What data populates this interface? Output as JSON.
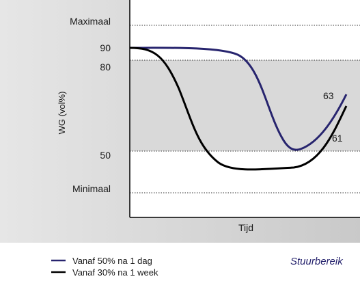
{
  "y_axis": {
    "title": "WG (vol%)",
    "labels": [
      "Maximaal",
      "90",
      "80",
      "50",
      "Minimaal"
    ]
  },
  "x_axis": {
    "title": "Tijd"
  },
  "annotations": [
    "63",
    "61"
  ],
  "legend": [
    "Vanaf 50% na 1 dag",
    "Vanaf 30% na 1 week"
  ],
  "caption": "Stuurbereik"
}
